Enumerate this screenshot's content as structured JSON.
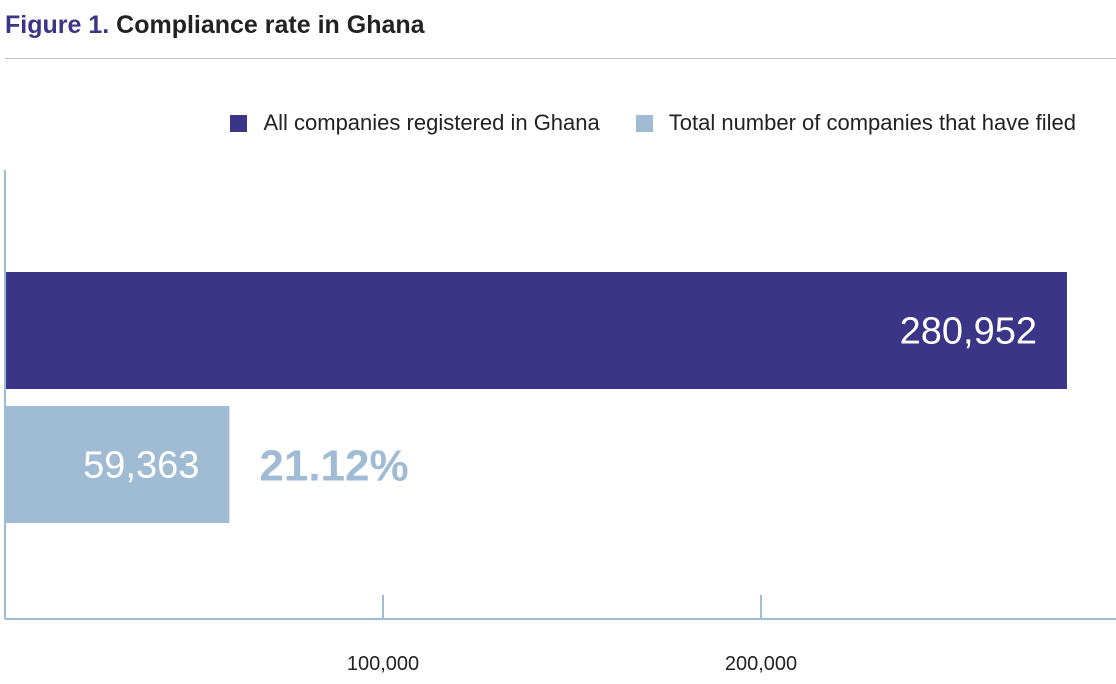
{
  "figure": {
    "number_label": "Figure 1.",
    "title_text": "Compliance rate in Ghana"
  },
  "chart_data": {
    "type": "bar",
    "orientation": "horizontal",
    "title": "Figure 1. Compliance rate in Ghana",
    "xlabel": "",
    "ylabel": "",
    "xlim": [
      0,
      295000
    ],
    "x_ticks": [
      100000,
      200000
    ],
    "x_tick_labels": [
      "100,000",
      "200,000"
    ],
    "grid": false,
    "legend_position": "top-right",
    "series": [
      {
        "name": "All companies registered in Ghana",
        "value": 280952,
        "label": "280,952",
        "color": "#3a3587"
      },
      {
        "name": "Total number of companies that have filed",
        "value": 59363,
        "label": "59,363",
        "color": "#9fbcd4"
      }
    ],
    "annotation": {
      "text": "21.12%",
      "color": "#9fbcd4"
    },
    "axis_color": "#9fbcd4"
  }
}
